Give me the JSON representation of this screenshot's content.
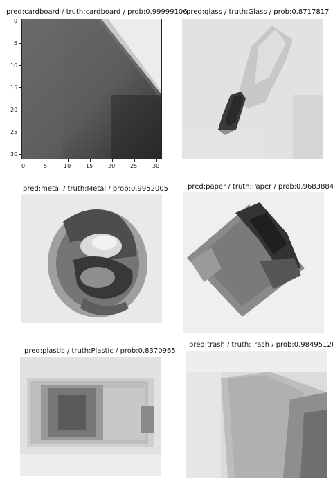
{
  "figure": {
    "panels": [
      {
        "title": "pred:cardboard / truth:cardboard / prob:0.99999106",
        "pred": "cardboard",
        "truth": "cardboard",
        "prob": 0.99999106
      },
      {
        "title": "pred:glass / truth:Glass / prob:0.8717817",
        "pred": "glass",
        "truth": "Glass",
        "prob": 0.8717817
      },
      {
        "title": "pred:metal / truth:Metal / prob:0.9952005",
        "pred": "metal",
        "truth": "Metal",
        "prob": 0.9952005
      },
      {
        "title": "pred:paper / truth:Paper / prob:0.9683884",
        "pred": "paper",
        "truth": "Paper",
        "prob": 0.9683884
      },
      {
        "title": "pred:plastic / truth:Plastic / prob:0.8370965",
        "pred": "plastic",
        "truth": "Plastic",
        "prob": 0.8370965
      },
      {
        "title": "pred:trash / truth:Trash / prob:0.98495126",
        "pred": "trash",
        "truth": "Trash",
        "prob": 0.98495126
      }
    ],
    "axes": {
      "y_ticks": [
        "0",
        "5",
        "10",
        "15",
        "20",
        "25",
        "30"
      ],
      "x_ticks": [
        "0",
        "5",
        "10",
        "15",
        "20",
        "25",
        "30"
      ]
    },
    "colors": {
      "background": "#ffffff",
      "text": "#111111",
      "axis": "#222222"
    }
  }
}
